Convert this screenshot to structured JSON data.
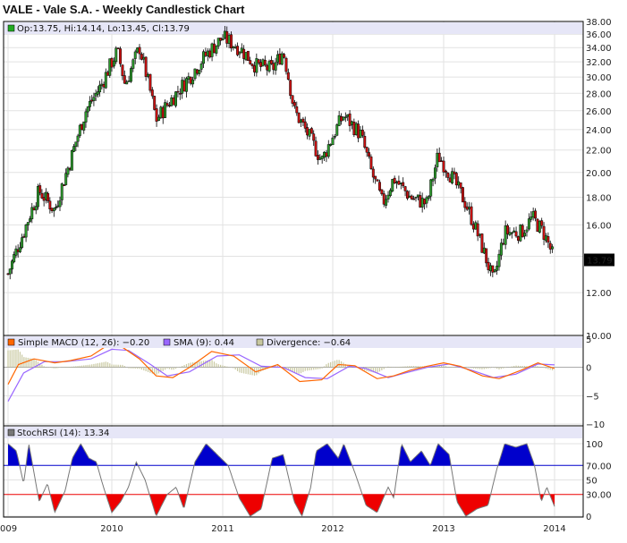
{
  "chart_data": {
    "type": "candlestick",
    "title": "VALE - Vale S.A. - Weekly Candlestick Chart",
    "ohlc_legend": "Op:13.75, Hi:14.14, Lo:13.45, Cl:13.79",
    "last_price": "13.79",
    "price_axis": {
      "ylim": [
        10,
        38
      ],
      "scale": "log",
      "tick_labels": [
        "38.00",
        "36.00",
        "34.00",
        "32.00",
        "30.00",
        "28.00",
        "26.00",
        "24.00",
        "22.00",
        "20.00",
        "18.00",
        "16.00",
        "14.00",
        "12.00",
        "10.00"
      ]
    },
    "x_axis": {
      "tick_labels": [
        "009",
        "2010",
        "2011",
        "2012",
        "2013",
        "2014"
      ]
    },
    "price_path": [
      {
        "t": 2009.0,
        "close": 13.0
      },
      {
        "t": 2009.15,
        "close": 15.5
      },
      {
        "t": 2009.3,
        "close": 18.5
      },
      {
        "t": 2009.45,
        "close": 17.0
      },
      {
        "t": 2009.6,
        "close": 21.0
      },
      {
        "t": 2009.75,
        "close": 26.0
      },
      {
        "t": 2009.9,
        "close": 29.0
      },
      {
        "t": 2010.05,
        "close": 33.5
      },
      {
        "t": 2010.12,
        "close": 29.0
      },
      {
        "t": 2010.25,
        "close": 34.0
      },
      {
        "t": 2010.4,
        "close": 25.0
      },
      {
        "t": 2010.55,
        "close": 27.5
      },
      {
        "t": 2010.7,
        "close": 30.0
      },
      {
        "t": 2010.85,
        "close": 33.0
      },
      {
        "t": 2011.0,
        "close": 35.5
      },
      {
        "t": 2011.15,
        "close": 34.0
      },
      {
        "t": 2011.3,
        "close": 31.5
      },
      {
        "t": 2011.45,
        "close": 31.0
      },
      {
        "t": 2011.55,
        "close": 33.5
      },
      {
        "t": 2011.65,
        "close": 26.0
      },
      {
        "t": 2011.8,
        "close": 23.0
      },
      {
        "t": 2011.9,
        "close": 21.0
      },
      {
        "t": 2012.05,
        "close": 24.5
      },
      {
        "t": 2012.1,
        "close": 25.5
      },
      {
        "t": 2012.25,
        "close": 23.5
      },
      {
        "t": 2012.35,
        "close": 20.0
      },
      {
        "t": 2012.45,
        "close": 17.5
      },
      {
        "t": 2012.55,
        "close": 19.5
      },
      {
        "t": 2012.7,
        "close": 18.0
      },
      {
        "t": 2012.85,
        "close": 17.5
      },
      {
        "t": 2012.95,
        "close": 21.5
      },
      {
        "t": 2013.05,
        "close": 20.0
      },
      {
        "t": 2013.2,
        "close": 17.5
      },
      {
        "t": 2013.35,
        "close": 14.5
      },
      {
        "t": 2013.45,
        "close": 12.5
      },
      {
        "t": 2013.55,
        "close": 15.5
      },
      {
        "t": 2013.7,
        "close": 15.5
      },
      {
        "t": 2013.8,
        "close": 16.5
      },
      {
        "t": 2013.9,
        "close": 15.5
      },
      {
        "t": 2014.0,
        "close": 13.79
      }
    ],
    "macd": {
      "legend": [
        {
          "label": "Simple MACD (12, 26): -0.20",
          "color": "#ff6600"
        },
        {
          "label": "SMA (9): 0.44",
          "color": "#9966ff"
        },
        {
          "label": "Divergence: -0.64",
          "color": "#c8c8a0"
        }
      ],
      "ylim": [
        -10,
        5
      ],
      "tick_labels": [
        "5",
        "0",
        "-5",
        "-10"
      ],
      "macd_path": [
        {
          "t": 2009.0,
          "v": -3.0
        },
        {
          "t": 2009.1,
          "v": 0.5
        },
        {
          "t": 2009.25,
          "v": 1.5
        },
        {
          "t": 2009.45,
          "v": 0.8
        },
        {
          "t": 2009.6,
          "v": 1.2
        },
        {
          "t": 2009.8,
          "v": 2.0
        },
        {
          "t": 2009.95,
          "v": 3.8
        },
        {
          "t": 2010.1,
          "v": 3.5
        },
        {
          "t": 2010.25,
          "v": 1.5
        },
        {
          "t": 2010.4,
          "v": -1.5
        },
        {
          "t": 2010.55,
          "v": -1.8
        },
        {
          "t": 2010.7,
          "v": 0.0
        },
        {
          "t": 2010.9,
          "v": 2.8
        },
        {
          "t": 2011.1,
          "v": 2.0
        },
        {
          "t": 2011.3,
          "v": -0.8
        },
        {
          "t": 2011.5,
          "v": 0.5
        },
        {
          "t": 2011.7,
          "v": -2.5
        },
        {
          "t": 2011.9,
          "v": -2.2
        },
        {
          "t": 2012.05,
          "v": 0.5
        },
        {
          "t": 2012.2,
          "v": 0.3
        },
        {
          "t": 2012.4,
          "v": -2.0
        },
        {
          "t": 2012.55,
          "v": -1.5
        },
        {
          "t": 2012.7,
          "v": -0.5
        },
        {
          "t": 2012.85,
          "v": 0.2
        },
        {
          "t": 2013.0,
          "v": 0.8
        },
        {
          "t": 2013.15,
          "v": 0.2
        },
        {
          "t": 2013.35,
          "v": -1.5
        },
        {
          "t": 2013.5,
          "v": -2.0
        },
        {
          "t": 2013.7,
          "v": -0.5
        },
        {
          "t": 2013.85,
          "v": 0.8
        },
        {
          "t": 2014.0,
          "v": -0.2
        }
      ],
      "signal_path": [
        {
          "t": 2009.0,
          "v": -6.0
        },
        {
          "t": 2009.15,
          "v": -1.0
        },
        {
          "t": 2009.35,
          "v": 1.0
        },
        {
          "t": 2009.55,
          "v": 1.0
        },
        {
          "t": 2009.8,
          "v": 1.5
        },
        {
          "t": 2010.0,
          "v": 3.2
        },
        {
          "t": 2010.15,
          "v": 3.0
        },
        {
          "t": 2010.35,
          "v": 0.5
        },
        {
          "t": 2010.5,
          "v": -1.5
        },
        {
          "t": 2010.7,
          "v": -0.8
        },
        {
          "t": 2010.95,
          "v": 2.0
        },
        {
          "t": 2011.15,
          "v": 2.2
        },
        {
          "t": 2011.35,
          "v": 0.2
        },
        {
          "t": 2011.55,
          "v": 0.0
        },
        {
          "t": 2011.75,
          "v": -1.8
        },
        {
          "t": 2011.95,
          "v": -2.0
        },
        {
          "t": 2012.15,
          "v": 0.2
        },
        {
          "t": 2012.3,
          "v": -0.2
        },
        {
          "t": 2012.5,
          "v": -1.8
        },
        {
          "t": 2012.65,
          "v": -1.0
        },
        {
          "t": 2012.85,
          "v": 0.0
        },
        {
          "t": 2013.05,
          "v": 0.6
        },
        {
          "t": 2013.25,
          "v": -0.5
        },
        {
          "t": 2013.45,
          "v": -1.8
        },
        {
          "t": 2013.65,
          "v": -1.2
        },
        {
          "t": 2013.85,
          "v": 0.6
        },
        {
          "t": 2014.0,
          "v": 0.44
        }
      ]
    },
    "stochrsi": {
      "legend": "StochRSI (14): 13.34",
      "ylim": [
        0,
        100
      ],
      "tick_labels": [
        "100",
        "70.00",
        "50",
        "30.00",
        "0"
      ],
      "overbought": 70,
      "oversold": 30,
      "overbought_label": "70.00",
      "oversold_label": "30.00",
      "path": [
        {
          "t": 2009.0,
          "v": 100
        },
        {
          "t": 2009.08,
          "v": 90
        },
        {
          "t": 2009.15,
          "v": 45
        },
        {
          "t": 2009.2,
          "v": 100
        },
        {
          "t": 2009.3,
          "v": 20
        },
        {
          "t": 2009.38,
          "v": 45
        },
        {
          "t": 2009.45,
          "v": 5
        },
        {
          "t": 2009.55,
          "v": 35
        },
        {
          "t": 2009.62,
          "v": 80
        },
        {
          "t": 2009.7,
          "v": 100
        },
        {
          "t": 2009.78,
          "v": 80
        },
        {
          "t": 2009.85,
          "v": 75
        },
        {
          "t": 2009.92,
          "v": 40
        },
        {
          "t": 2010.0,
          "v": 5
        },
        {
          "t": 2010.08,
          "v": 20
        },
        {
          "t": 2010.15,
          "v": 40
        },
        {
          "t": 2010.22,
          "v": 75
        },
        {
          "t": 2010.3,
          "v": 50
        },
        {
          "t": 2010.4,
          "v": 0
        },
        {
          "t": 2010.5,
          "v": 30
        },
        {
          "t": 2010.58,
          "v": 40
        },
        {
          "t": 2010.65,
          "v": 10
        },
        {
          "t": 2010.75,
          "v": 75
        },
        {
          "t": 2010.85,
          "v": 100
        },
        {
          "t": 2010.95,
          "v": 85
        },
        {
          "t": 2011.05,
          "v": 70
        },
        {
          "t": 2011.15,
          "v": 25
        },
        {
          "t": 2011.25,
          "v": 0
        },
        {
          "t": 2011.35,
          "v": 10
        },
        {
          "t": 2011.45,
          "v": 80
        },
        {
          "t": 2011.55,
          "v": 85
        },
        {
          "t": 2011.65,
          "v": 20
        },
        {
          "t": 2011.72,
          "v": 0
        },
        {
          "t": 2011.8,
          "v": 40
        },
        {
          "t": 2011.85,
          "v": 90
        },
        {
          "t": 2011.95,
          "v": 100
        },
        {
          "t": 2012.05,
          "v": 80
        },
        {
          "t": 2012.1,
          "v": 100
        },
        {
          "t": 2012.2,
          "v": 60
        },
        {
          "t": 2012.3,
          "v": 15
        },
        {
          "t": 2012.4,
          "v": 5
        },
        {
          "t": 2012.5,
          "v": 40
        },
        {
          "t": 2012.55,
          "v": 25
        },
        {
          "t": 2012.62,
          "v": 100
        },
        {
          "t": 2012.7,
          "v": 75
        },
        {
          "t": 2012.8,
          "v": 90
        },
        {
          "t": 2012.88,
          "v": 70
        },
        {
          "t": 2012.95,
          "v": 100
        },
        {
          "t": 2013.05,
          "v": 85
        },
        {
          "t": 2013.12,
          "v": 20
        },
        {
          "t": 2013.2,
          "v": 0
        },
        {
          "t": 2013.3,
          "v": 10
        },
        {
          "t": 2013.4,
          "v": 15
        },
        {
          "t": 2013.48,
          "v": 65
        },
        {
          "t": 2013.55,
          "v": 100
        },
        {
          "t": 2013.65,
          "v": 95
        },
        {
          "t": 2013.75,
          "v": 100
        },
        {
          "t": 2013.82,
          "v": 70
        },
        {
          "t": 2013.88,
          "v": 20
        },
        {
          "t": 2013.93,
          "v": 40
        },
        {
          "t": 2014.0,
          "v": 13.34
        }
      ]
    }
  }
}
